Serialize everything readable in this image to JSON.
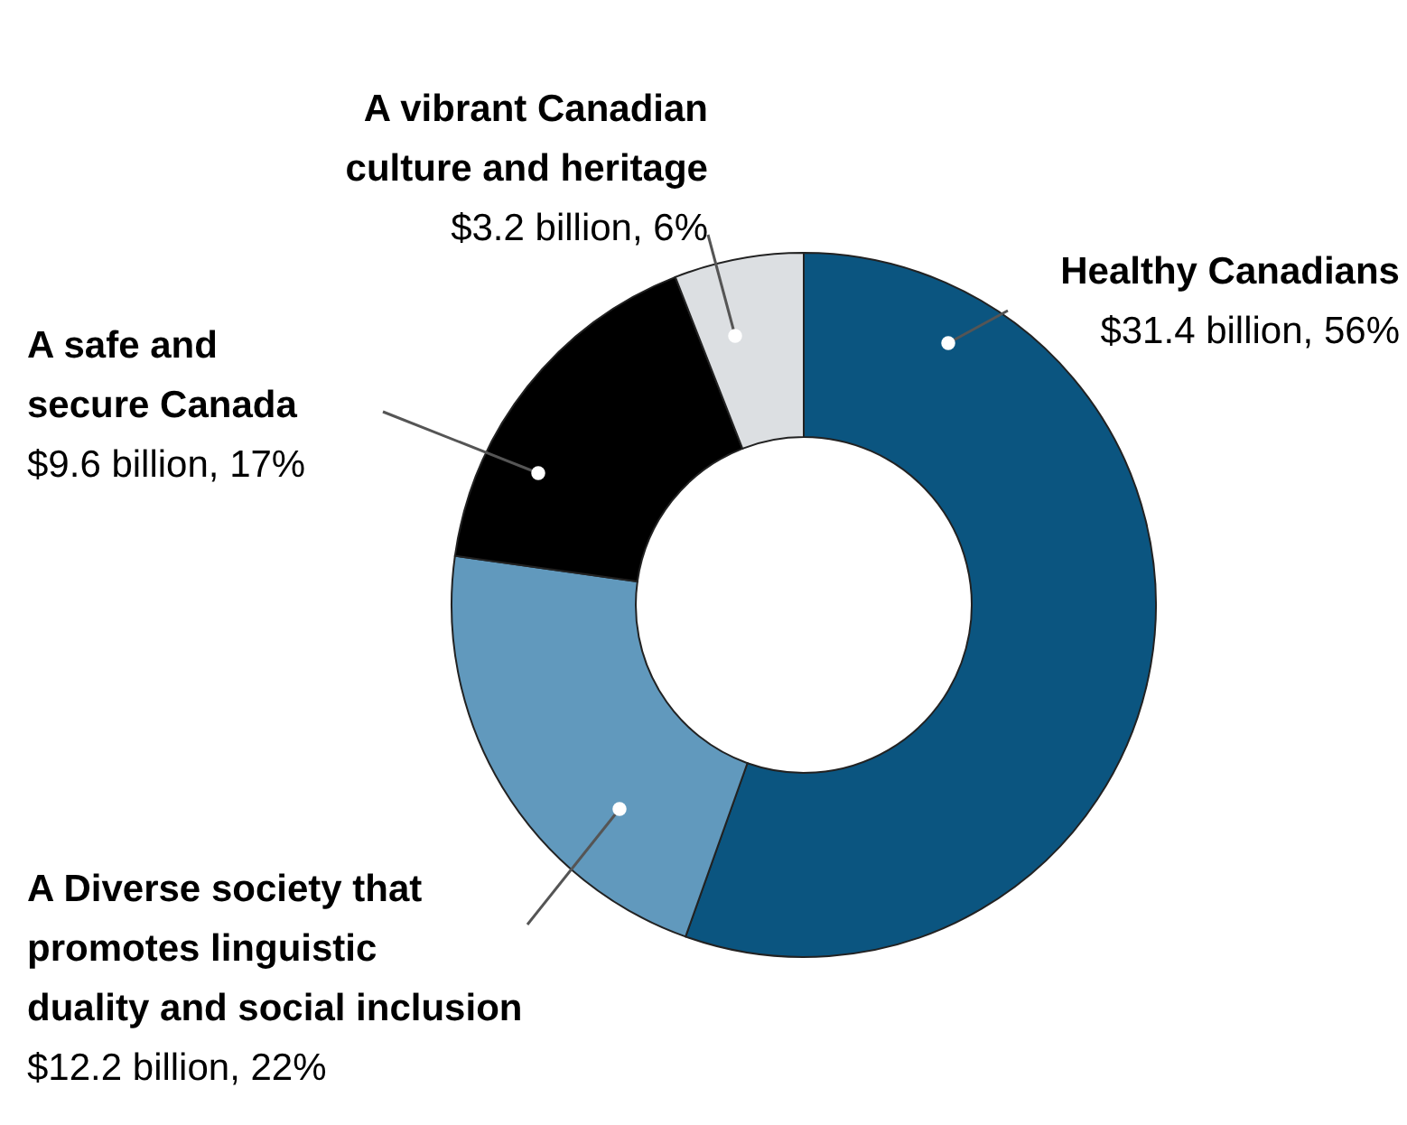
{
  "chart_data": {
    "type": "donut",
    "categories": [
      "Healthy Canadians",
      "A Diverse society that\npromotes linguistic\nduality and social inclusion",
      "A safe and\nsecure Canada",
      "A vibrant Canadian\nculture and heritage"
    ],
    "values": [
      56,
      22,
      17,
      6
    ],
    "value_labels": [
      "$31.4 billion, 56%",
      "$12.2 billion, 22%",
      "$9.6 billion, 17%",
      "$3.2 billion, 6%"
    ],
    "colors": [
      "#0b5580",
      "#6199bd",
      "#000000",
      "#dcdfe2"
    ]
  }
}
